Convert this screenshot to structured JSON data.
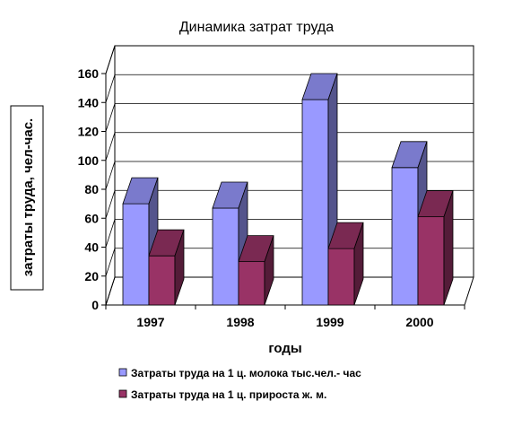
{
  "chart_data": {
    "type": "bar",
    "title": "Динамика затрат труда",
    "xlabel": "годы",
    "ylabel": "затраты труда, чел-час.",
    "categories": [
      "1997",
      "1998",
      "1999",
      "2000"
    ],
    "series": [
      {
        "name": "Затраты труда на 1 ц. молока тыс.чел.- час",
        "values": [
          70,
          67,
          142,
          95
        ],
        "color": "#9999ff"
      },
      {
        "name": "Затраты труда на 1 ц. прироста ж. м.",
        "values": [
          34,
          30,
          39,
          61
        ],
        "color": "#993366"
      }
    ],
    "ylim": [
      0,
      160
    ],
    "yticks": [
      0,
      20,
      40,
      60,
      80,
      100,
      120,
      140,
      160
    ],
    "grid": true,
    "legend_position": "bottom",
    "style": "3d-clustered-column"
  }
}
